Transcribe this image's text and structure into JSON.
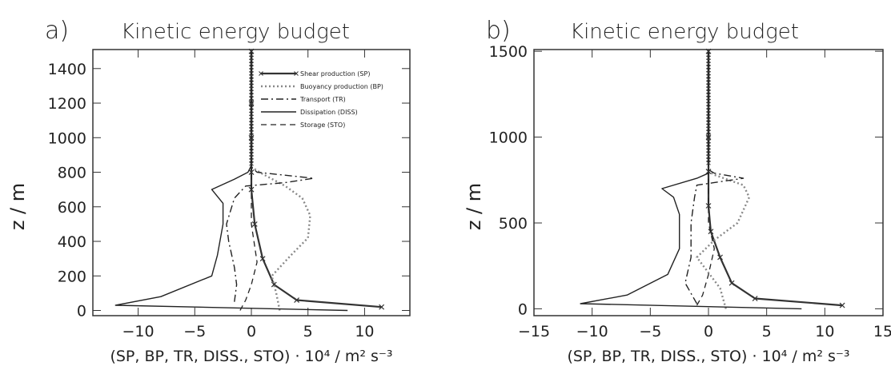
{
  "chart_data": [
    {
      "type": "line",
      "panel_label": "a)",
      "title": "Kinetic energy budget",
      "ylabel": "z / m",
      "xlabel": "(SP, BP, TR, DISS., STO) · 10⁴ / m² s⁻³",
      "xlim": [
        -14,
        14
      ],
      "ylim": [
        -30,
        1510
      ],
      "xticks": [
        -10,
        -5,
        0,
        5,
        10
      ],
      "yticks": [
        0,
        200,
        400,
        600,
        800,
        1000,
        1200,
        1400
      ],
      "legend_position": "top-right",
      "series": [
        {
          "name": "Shear production (SP)",
          "style": "solid-marker",
          "points": [
            [
              11.5,
              20
            ],
            [
              4,
              60
            ],
            [
              2,
              150
            ],
            [
              1,
              300
            ],
            [
              0.3,
              500
            ],
            [
              0,
              700
            ],
            [
              0,
              800
            ],
            [
              0,
              1000
            ],
            [
              0,
              1200
            ],
            [
              0,
              1500
            ]
          ]
        },
        {
          "name": "Buoyancy production (BP)",
          "style": "dotted",
          "points": [
            [
              2.5,
              0
            ],
            [
              2.2,
              100
            ],
            [
              1.8,
              200
            ],
            [
              3.5,
              320
            ],
            [
              5,
              420
            ],
            [
              5.2,
              550
            ],
            [
              4.5,
              650
            ],
            [
              3,
              720
            ],
            [
              1,
              790
            ],
            [
              0,
              830
            ],
            [
              0,
              1500
            ]
          ]
        },
        {
          "name": "Transport (TR)",
          "style": "dashdot",
          "points": [
            [
              -1.5,
              50
            ],
            [
              -1.3,
              150
            ],
            [
              -1.5,
              250
            ],
            [
              -2,
              400
            ],
            [
              -2.2,
              500
            ],
            [
              -1.5,
              650
            ],
            [
              -0.5,
              720
            ],
            [
              3,
              740
            ],
            [
              5.5,
              765
            ],
            [
              0.5,
              800
            ],
            [
              0,
              830
            ],
            [
              0,
              1500
            ]
          ]
        },
        {
          "name": "Dissipation (DISS)",
          "style": "solid",
          "points": [
            [
              8.5,
              0
            ],
            [
              -12,
              30
            ],
            [
              -8,
              80
            ],
            [
              -3.5,
              200
            ],
            [
              -3,
              320
            ],
            [
              -2.5,
              500
            ],
            [
              -2.5,
              620
            ],
            [
              -3.5,
              700
            ],
            [
              -1.5,
              760
            ],
            [
              -0.3,
              800
            ],
            [
              0,
              840
            ],
            [
              0,
              1500
            ]
          ]
        },
        {
          "name": "Storage (STO)",
          "style": "dashed",
          "points": [
            [
              -1,
              0
            ],
            [
              -0.5,
              60
            ],
            [
              0,
              150
            ],
            [
              0.5,
              280
            ],
            [
              0,
              500
            ],
            [
              0,
              800
            ],
            [
              0,
              1500
            ]
          ]
        }
      ],
      "legend_entries": [
        "Shear production (SP)",
        "Buoyancy production (BP)",
        "Transport (TR)",
        "Dissipation (DISS)",
        "Storage (STO)"
      ]
    },
    {
      "type": "line",
      "panel_label": "b)",
      "title": "Kinetic energy budget",
      "ylabel": "z / m",
      "xlabel": "(SP, BP, TR, DISS., STO) · 10⁴ / m² s⁻³",
      "xlim": [
        -15,
        15
      ],
      "ylim": [
        -40,
        1510
      ],
      "xticks": [
        -15,
        -10,
        -5,
        0,
        5,
        10,
        15
      ],
      "yticks": [
        0,
        500,
        1000,
        1500
      ],
      "series": [
        {
          "name": "Shear production (SP)",
          "style": "solid-marker",
          "points": [
            [
              11.5,
              20
            ],
            [
              4,
              60
            ],
            [
              2,
              150
            ],
            [
              1,
              300
            ],
            [
              0.2,
              450
            ],
            [
              0,
              600
            ],
            [
              0,
              800
            ],
            [
              0,
              1000
            ],
            [
              0,
              1500
            ]
          ]
        },
        {
          "name": "Buoyancy production (BP)",
          "style": "dotted",
          "points": [
            [
              1.5,
              0
            ],
            [
              1,
              120
            ],
            [
              -1,
              300
            ],
            [
              0.5,
              400
            ],
            [
              2.5,
              500
            ],
            [
              3.5,
              650
            ],
            [
              3,
              720
            ],
            [
              0.5,
              780
            ],
            [
              0,
              800
            ],
            [
              0,
              1500
            ]
          ]
        },
        {
          "name": "Transport (TR)",
          "style": "dashdot",
          "points": [
            [
              -1,
              30
            ],
            [
              -2,
              150
            ],
            [
              -1.5,
              300
            ],
            [
              -1.5,
              500
            ],
            [
              -1.2,
              650
            ],
            [
              -1,
              720
            ],
            [
              3,
              760
            ],
            [
              0.5,
              790
            ],
            [
              0,
              810
            ],
            [
              0,
              1500
            ]
          ]
        },
        {
          "name": "Dissipation (DISS)",
          "style": "solid",
          "points": [
            [
              8,
              0
            ],
            [
              -11,
              30
            ],
            [
              -7,
              80
            ],
            [
              -3.5,
              200
            ],
            [
              -2.5,
              350
            ],
            [
              -2.5,
              550
            ],
            [
              -3,
              650
            ],
            [
              -4,
              700
            ],
            [
              -1,
              760
            ],
            [
              0,
              790
            ],
            [
              0,
              1500
            ]
          ]
        },
        {
          "name": "Storage (STO)",
          "style": "dashed",
          "points": [
            [
              -1,
              20
            ],
            [
              -0.5,
              80
            ],
            [
              0,
              200
            ],
            [
              0.5,
              350
            ],
            [
              0,
              500
            ],
            [
              0,
              800
            ],
            [
              0,
              1500
            ]
          ]
        }
      ]
    }
  ]
}
